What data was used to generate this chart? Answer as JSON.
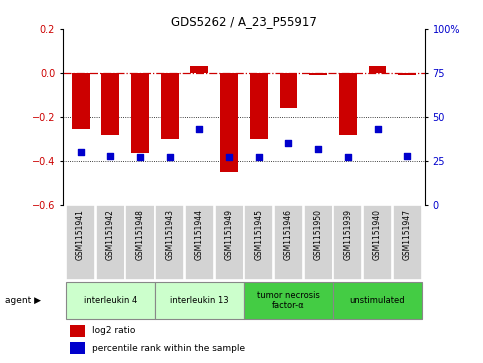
{
  "title": "GDS5262 / A_23_P55917",
  "samples": [
    "GSM1151941",
    "GSM1151942",
    "GSM1151948",
    "GSM1151943",
    "GSM1151944",
    "GSM1151949",
    "GSM1151945",
    "GSM1151946",
    "GSM1151950",
    "GSM1151939",
    "GSM1151940",
    "GSM1151947"
  ],
  "log2_ratio": [
    -0.255,
    -0.28,
    -0.365,
    -0.3,
    0.03,
    -0.45,
    -0.3,
    -0.16,
    -0.01,
    -0.28,
    0.03,
    -0.01
  ],
  "percentile": [
    30,
    28,
    27,
    27,
    43,
    27,
    27,
    35,
    32,
    27,
    43,
    28
  ],
  "ylim_left": [
    -0.6,
    0.2
  ],
  "ylim_right": [
    0,
    100
  ],
  "yticks_left": [
    -0.6,
    -0.4,
    -0.2,
    0.0,
    0.2
  ],
  "yticks_right": [
    0,
    25,
    50,
    75,
    100
  ],
  "bar_color": "#cc0000",
  "dot_color": "#0000cc",
  "zero_line_color": "#cc0000",
  "gridline_color": "#000000",
  "agent_groups": [
    {
      "label": "interleukin 4",
      "start": 0,
      "end": 2,
      "color": "#ccffcc"
    },
    {
      "label": "interleukin 13",
      "start": 3,
      "end": 5,
      "color": "#ccffcc"
    },
    {
      "label": "tumor necrosis\nfactor-α",
      "start": 6,
      "end": 8,
      "color": "#44cc44"
    },
    {
      "label": "unstimulated",
      "start": 9,
      "end": 11,
      "color": "#44cc44"
    }
  ]
}
